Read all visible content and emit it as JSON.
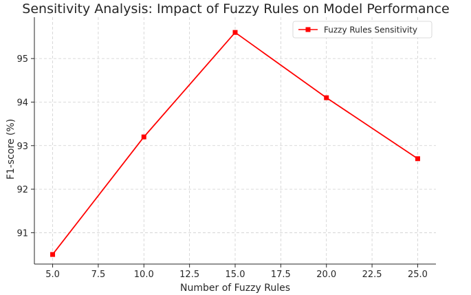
{
  "chart_data": {
    "type": "line",
    "title": "Sensitivity Analysis: Impact of Fuzzy Rules on Model Performance",
    "xlabel": "Number of Fuzzy Rules",
    "ylabel": "F1-score (%)",
    "x": [
      5,
      10,
      15,
      20,
      25
    ],
    "series": [
      {
        "name": "Fuzzy Rules Sensitivity",
        "values": [
          90.5,
          93.2,
          95.6,
          94.1,
          92.7
        ],
        "color": "#ff0000",
        "marker": "square"
      }
    ],
    "xlim": [
      4.0,
      26.0
    ],
    "ylim": [
      90.28,
      95.95
    ],
    "xticks": [
      5.0,
      7.5,
      10.0,
      12.5,
      15.0,
      17.5,
      20.0,
      22.5,
      25.0
    ],
    "xtick_labels": [
      "5.0",
      "7.5",
      "10.0",
      "12.5",
      "15.0",
      "17.5",
      "20.0",
      "22.5",
      "25.0"
    ],
    "yticks": [
      91,
      92,
      93,
      94,
      95
    ],
    "ytick_labels": [
      "91",
      "92",
      "93",
      "94",
      "95"
    ],
    "grid": true,
    "legend_position": "top-right"
  }
}
